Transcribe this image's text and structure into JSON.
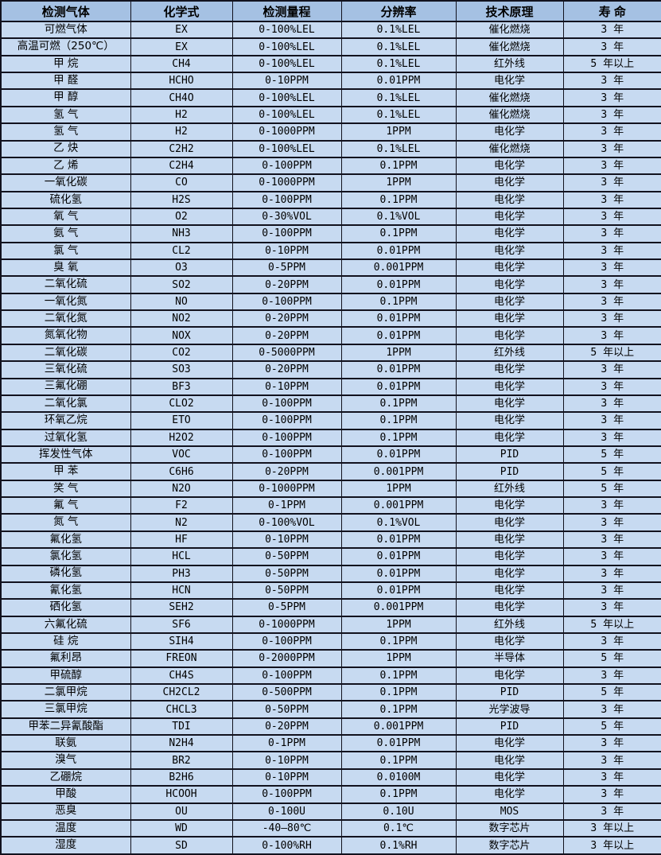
{
  "chart_data": {
    "type": "table",
    "title": "",
    "columns": [
      "检测气体",
      "化学式",
      "检测量程",
      "分辨率",
      "技术原理",
      "寿 命"
    ],
    "rows": [
      [
        "可燃气体",
        "EX",
        "0-100%LEL",
        "0.1%LEL",
        "催化燃烧",
        "3 年"
      ],
      [
        "高温可燃（250℃）",
        "EX",
        "0-100%LEL",
        "0.1%LEL",
        "催化燃烧",
        "3 年"
      ],
      [
        "甲 烷",
        "CH4",
        "0-100%LEL",
        "0.1%LEL",
        "红外线",
        "5 年以上"
      ],
      [
        "甲 醛",
        "HCHO",
        "0-10PPM",
        "0.01PPM",
        "电化学",
        "3 年"
      ],
      [
        "甲 醇",
        "CH4O",
        "0-100%LEL",
        "0.1%LEL",
        "催化燃烧",
        "3 年"
      ],
      [
        "氢 气",
        "H2",
        "0-100%LEL",
        "0.1%LEL",
        "催化燃烧",
        "3 年"
      ],
      [
        "氢 气",
        "H2",
        "0-1000PPM",
        "1PPM",
        "电化学",
        "3 年"
      ],
      [
        "乙 炔",
        "C2H2",
        "0-100%LEL",
        "0.1%LEL",
        "催化燃烧",
        "3 年"
      ],
      [
        "乙 烯",
        "C2H4",
        "0-100PPM",
        "0.1PPM",
        "电化学",
        "3 年"
      ],
      [
        "一氧化碳",
        "CO",
        "0-1000PPM",
        "1PPM",
        "电化学",
        "3 年"
      ],
      [
        "硫化氢",
        "H2S",
        "0-100PPM",
        "0.1PPM",
        "电化学",
        "3 年"
      ],
      [
        "氧 气",
        "O2",
        "0-30%VOL",
        "0.1%VOL",
        "电化学",
        "3 年"
      ],
      [
        "氨 气",
        "NH3",
        "0-100PPM",
        "0.1PPM",
        "电化学",
        "3 年"
      ],
      [
        "氯 气",
        "CL2",
        "0-10PPM",
        "0.01PPM",
        "电化学",
        "3 年"
      ],
      [
        "臭 氧",
        "O3",
        "0-5PPM",
        "0.001PPM",
        "电化学",
        "3 年"
      ],
      [
        "二氧化硫",
        "SO2",
        "0-20PPM",
        "0.01PPM",
        "电化学",
        "3 年"
      ],
      [
        "一氧化氮",
        "NO",
        "0-100PPM",
        "0.1PPM",
        "电化学",
        "3 年"
      ],
      [
        "二氧化氮",
        "NO2",
        "0-20PPM",
        "0.01PPM",
        "电化学",
        "3 年"
      ],
      [
        "氮氧化物",
        "NOX",
        "0-20PPM",
        "0.01PPM",
        "电化学",
        "3 年"
      ],
      [
        "二氧化碳",
        "CO2",
        "0-5000PPM",
        "1PPM",
        "红外线",
        "5 年以上"
      ],
      [
        "三氧化硫",
        "SO3",
        "0-20PPM",
        "0.01PPM",
        "电化学",
        "3 年"
      ],
      [
        "三氟化硼",
        "BF3",
        "0-10PPM",
        "0.01PPM",
        "电化学",
        "3 年"
      ],
      [
        "二氧化氯",
        "CLO2",
        "0-100PPM",
        "0.1PPM",
        "电化学",
        "3 年"
      ],
      [
        "环氧乙烷",
        "ETO",
        "0-100PPM",
        "0.1PPM",
        "电化学",
        "3 年"
      ],
      [
        "过氧化氢",
        "H2O2",
        "0-100PPM",
        "0.1PPM",
        "电化学",
        "3 年"
      ],
      [
        "挥发性气体",
        "VOC",
        "0-100PPM",
        "0.01PPM",
        "PID",
        "5 年"
      ],
      [
        "甲 苯",
        "C6H6",
        "0-20PPM",
        "0.001PPM",
        "PID",
        "5 年"
      ],
      [
        "笑 气",
        "N2O",
        "0-1000PPM",
        "1PPM",
        "红外线",
        "5 年"
      ],
      [
        "氟 气",
        "F2",
        "0-1PPM",
        "0.001PPM",
        "电化学",
        "3 年"
      ],
      [
        "氮 气",
        "N2",
        "0-100%VOL",
        "0.1%VOL",
        "电化学",
        "3 年"
      ],
      [
        "氟化氢",
        "HF",
        "0-10PPM",
        "0.01PPM",
        "电化学",
        "3 年"
      ],
      [
        "氯化氢",
        "HCL",
        "0-50PPM",
        "0.01PPM",
        "电化学",
        "3 年"
      ],
      [
        "磷化氢",
        "PH3",
        "0-50PPM",
        "0.01PPM",
        "电化学",
        "3 年"
      ],
      [
        "氰化氢",
        "HCN",
        "0-50PPM",
        "0.01PPM",
        "电化学",
        "3 年"
      ],
      [
        "硒化氢",
        "SEH2",
        "0-5PPM",
        "0.001PPM",
        "电化学",
        "3 年"
      ],
      [
        "六氟化硫",
        "SF6",
        "0-1000PPM",
        "1PPM",
        "红外线",
        "5 年以上"
      ],
      [
        "硅 烷",
        "SIH4",
        "0-100PPM",
        "0.1PPM",
        "电化学",
        "3 年"
      ],
      [
        "氟利昂",
        "FREON",
        "0-2000PPM",
        "1PPM",
        "半导体",
        "5 年"
      ],
      [
        "甲硫醇",
        "CH4S",
        "0-100PPM",
        "0.1PPM",
        "电化学",
        "3 年"
      ],
      [
        "二氯甲烷",
        "CH2CL2",
        "0-500PPM",
        "0.1PPM",
        "PID",
        "5 年"
      ],
      [
        "三氯甲烷",
        "CHCL3",
        "0-50PPM",
        "0.1PPM",
        "光学波导",
        "3 年"
      ],
      [
        "甲苯二异氰酸酯",
        "TDI",
        "0-20PPM",
        "0.001PPM",
        "PID",
        "5 年"
      ],
      [
        "联氨",
        "N2H4",
        "0-1PPM",
        "0.01PPM",
        "电化学",
        "3 年"
      ],
      [
        "溴气",
        "BR2",
        "0-10PPM",
        "0.1PPM",
        "电化学",
        "3 年"
      ],
      [
        "乙硼烷",
        "B2H6",
        "0-10PPM",
        "0.0100M",
        "电化学",
        "3 年"
      ],
      [
        "甲酸",
        "HCOOH",
        "0-100PPM",
        "0.1PPM",
        "电化学",
        "3 年"
      ],
      [
        "恶臭",
        "OU",
        "0-100U",
        "0.10U",
        "MOS",
        "3 年"
      ],
      [
        "温度",
        "WD",
        "-40—80℃",
        "0.1℃",
        "数字芯片",
        "3 年以上"
      ],
      [
        "湿度",
        "SD",
        "0-100%RH",
        "0.1%RH",
        "数字芯片",
        "3 年以上"
      ]
    ],
    "layout": {
      "grid": true,
      "header_row": true
    }
  },
  "colors": {
    "header_bg": "#a5c1e3",
    "row_bg": "#c7daf1",
    "border": "#12121e",
    "text": "#000000"
  }
}
